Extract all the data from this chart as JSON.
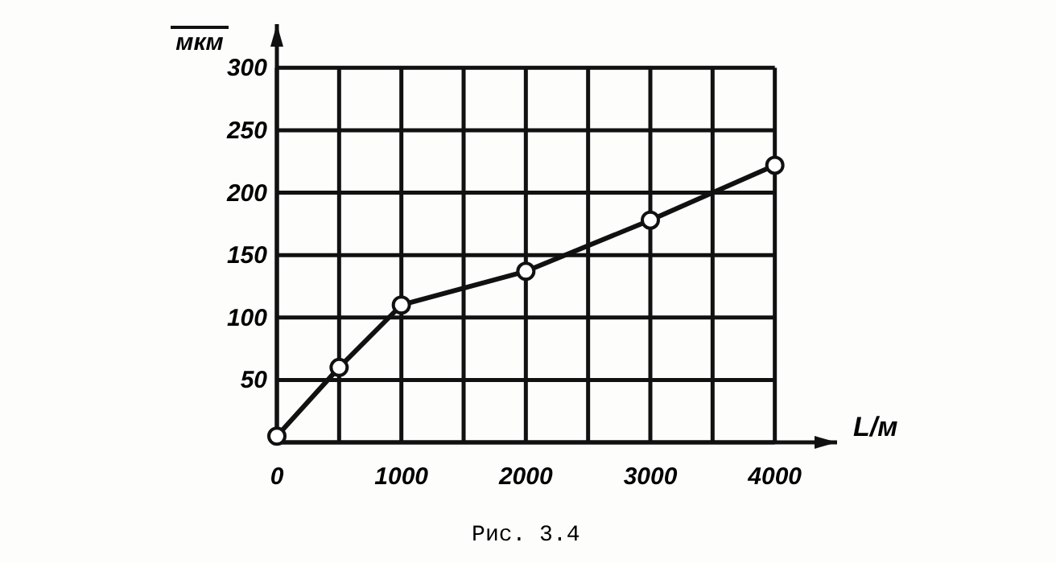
{
  "chart_data": {
    "type": "line",
    "xlabel": "L/м",
    "ylabel": "мкм",
    "x": [
      0,
      500,
      1000,
      2000,
      3000,
      4000
    ],
    "series": [
      {
        "color": "#111111",
        "values": [
          5,
          60,
          110,
          137,
          178,
          222
        ]
      }
    ],
    "xlim": [
      0,
      4500
    ],
    "ylim": [
      0,
      335
    ],
    "xticks": [
      {
        "value": 0,
        "label": "0"
      },
      {
        "value": 500,
        "label": null
      },
      1000,
      {
        "value": 1500,
        "label": null
      },
      2000,
      {
        "value": 2500,
        "label": null
      },
      3000,
      {
        "value": 3500,
        "label": null
      },
      4000
    ],
    "yticks": [
      {
        "value": 0,
        "label": null
      },
      50,
      100,
      150,
      200,
      250,
      300
    ],
    "grid": true,
    "marker": "circle",
    "line_style": "solid",
    "annotations": [
      "Рис. 3.4"
    ]
  }
}
